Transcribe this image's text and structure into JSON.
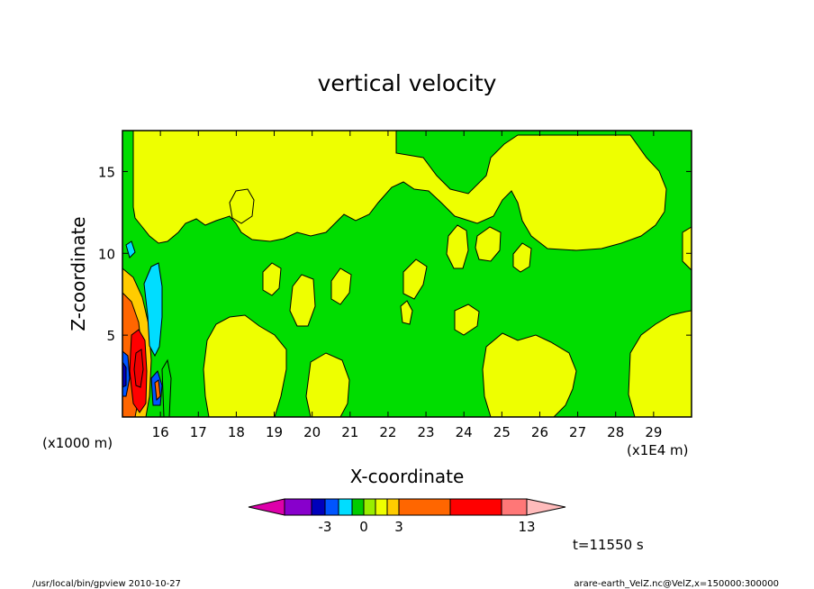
{
  "chart_data": {
    "type": "heatmap",
    "title": "vertical velocity",
    "xlabel": "X-coordinate",
    "ylabel": "Z-coordinate",
    "x_units": "(x1E4 m)",
    "y_units": "(x1000 m)",
    "xlim": [
      15.0,
      30.0
    ],
    "ylim": [
      0.0,
      17.5
    ],
    "x_ticks": [
      "16",
      "17",
      "18",
      "19",
      "20",
      "21",
      "22",
      "23",
      "24",
      "25",
      "26",
      "27",
      "28",
      "29"
    ],
    "y_ticks": [
      "5",
      "10",
      "15"
    ],
    "x_tick_values": [
      16,
      17,
      18,
      19,
      20,
      21,
      22,
      23,
      24,
      25,
      26,
      27,
      28,
      29
    ],
    "y_tick_values": [
      5,
      10,
      15
    ],
    "time_label": "t=11550 s",
    "colorbar": {
      "labels": [
        "-3",
        "0",
        "3",
        "13"
      ],
      "colors": [
        "#dd00aa",
        "#8800cc",
        "#0000bb",
        "#0055ff",
        "#00ddff",
        "#00cc00",
        "#99ee00",
        "#eeff00",
        "#ffcc00",
        "#ff6600",
        "#ff0000",
        "#ff7777",
        "#ffbbbb"
      ],
      "levels": [
        -8,
        -6,
        -4,
        -3,
        -2,
        -1,
        0,
        1,
        2,
        3,
        6,
        10,
        13
      ]
    },
    "background_regions": [
      {
        "level": "0 to 1",
        "color": "#00dd00"
      },
      {
        "level": "1 to 2",
        "color": "#eeff00"
      }
    ]
  },
  "footer": {
    "left": "/usr/local/bin/gpview  2010-10-27",
    "right": "arare-earth_VelZ.nc@VelZ,x=150000:300000"
  }
}
